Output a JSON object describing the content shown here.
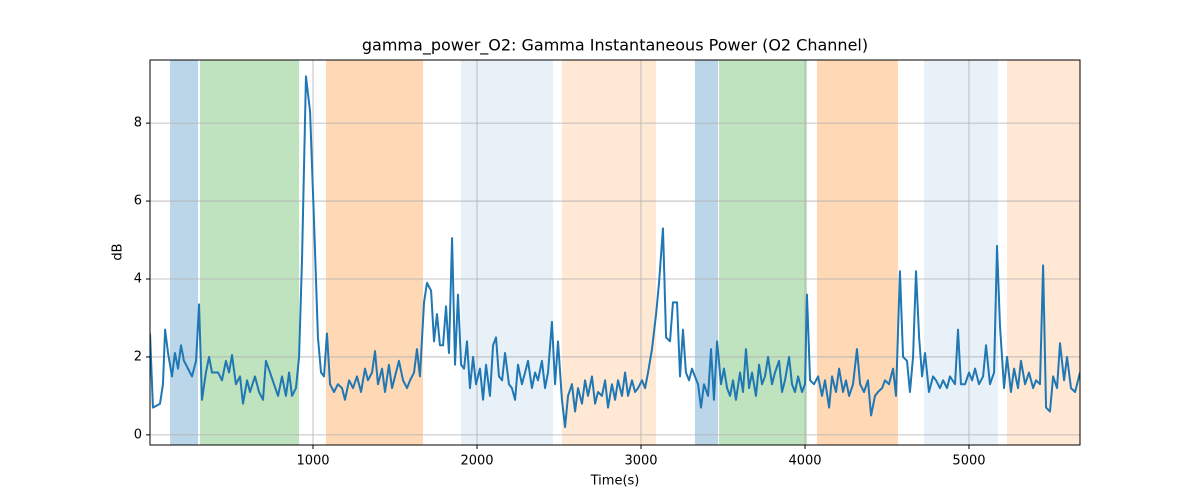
{
  "chart_data": {
    "type": "line",
    "title": "gamma_power_O2: Gamma Instantaneous Power (O2 Channel)",
    "xlabel": "Time(s)",
    "ylabel": "dB",
    "xlim": [
      6,
      5677
    ],
    "ylim": [
      -0.26,
      9.62
    ],
    "xticks": [
      1000,
      2000,
      3000,
      4000,
      5000
    ],
    "yticks": [
      0,
      2,
      4,
      6,
      8
    ],
    "grid": true,
    "spans": [
      {
        "start": 128,
        "end": 299,
        "color": "#1f77b4",
        "alpha": 0.3
      },
      {
        "start": 311,
        "end": 915,
        "color": "#2ca02c",
        "alpha": 0.3
      },
      {
        "start": 1079,
        "end": 1671,
        "color": "#ff7f0e",
        "alpha": 0.3
      },
      {
        "start": 1902,
        "end": 2463,
        "color": "#1f77b4",
        "alpha": 0.1
      },
      {
        "start": 2518,
        "end": 3091,
        "color": "#ff7f0e",
        "alpha": 0.18
      },
      {
        "start": 3329,
        "end": 3470,
        "color": "#1f77b4",
        "alpha": 0.3
      },
      {
        "start": 3476,
        "end": 4012,
        "color": "#2ca02c",
        "alpha": 0.3
      },
      {
        "start": 4073,
        "end": 4567,
        "color": "#ff7f0e",
        "alpha": 0.3
      },
      {
        "start": 4726,
        "end": 5177,
        "color": "#1f77b4",
        "alpha": 0.1
      },
      {
        "start": 5232,
        "end": 5677,
        "color": "#ff7f0e",
        "alpha": 0.18
      }
    ],
    "series": [
      {
        "color": "#1f77b4",
        "x": [
          6,
          24,
          67,
          85,
          98,
          116,
          140,
          158,
          177,
          195,
          213,
          238,
          262,
          287,
          305,
          323,
          347,
          366,
          384,
          421,
          445,
          469,
          488,
          506,
          530,
          555,
          573,
          598,
          616,
          646,
          671,
          695,
          713,
          738,
          762,
          787,
          811,
          835,
          854,
          872,
          896,
          915,
          933,
          957,
          982,
          1006,
          1030,
          1049,
          1067,
          1085,
          1104,
          1128,
          1152,
          1177,
          1195,
          1220,
          1244,
          1268,
          1293,
          1317,
          1335,
          1360,
          1378,
          1396,
          1421,
          1439,
          1463,
          1482,
          1506,
          1524,
          1549,
          1573,
          1592,
          1616,
          1634,
          1652,
          1677,
          1695,
          1720,
          1738,
          1756,
          1774,
          1793,
          1811,
          1829,
          1848,
          1866,
          1884,
          1903,
          1921,
          1939,
          1957,
          1976,
          1994,
          2018,
          2037,
          2055,
          2079,
          2098,
          2116,
          2134,
          2153,
          2171,
          2195,
          2213,
          2232,
          2250,
          2274,
          2293,
          2311,
          2335,
          2354,
          2372,
          2396,
          2415,
          2433,
          2457,
          2476,
          2494,
          2518,
          2537,
          2555,
          2579,
          2598,
          2616,
          2640,
          2659,
          2677,
          2701,
          2720,
          2738,
          2762,
          2781,
          2799,
          2823,
          2842,
          2860,
          2884,
          2903,
          2921,
          2945,
          2964,
          2982,
          3006,
          3025,
          3043,
          3067,
          3092,
          3110,
          3134,
          3153,
          3177,
          3195,
          3220,
          3238,
          3256,
          3274,
          3293,
          3311,
          3329,
          3348,
          3366,
          3384,
          3409,
          3427,
          3445,
          3464,
          3488,
          3506,
          3525,
          3543,
          3561,
          3579,
          3604,
          3622,
          3640,
          3659,
          3677,
          3701,
          3720,
          3738,
          3756,
          3775,
          3799,
          3817,
          3842,
          3860,
          3878,
          3903,
          3921,
          3939,
          3958,
          3982,
          4000,
          4012,
          4031,
          4055,
          4080,
          4104,
          4122,
          4147,
          4165,
          4189,
          4208,
          4232,
          4250,
          4269,
          4293,
          4317,
          4336,
          4360,
          4384,
          4403,
          4427,
          4445,
          4470,
          4488,
          4512,
          4537,
          4555,
          4579,
          4598,
          4622,
          4640,
          4659,
          4677,
          4696,
          4714,
          4732,
          4756,
          4781,
          4799,
          4823,
          4842,
          4866,
          4884,
          4915,
          4933,
          4951,
          4976,
          5000,
          5019,
          5037,
          5061,
          5086,
          5104,
          5128,
          5153,
          5171,
          5189,
          5214,
          5232,
          5256,
          5275,
          5299,
          5317,
          5342,
          5366,
          5391,
          5409,
          5433,
          5452,
          5470,
          5494,
          5513,
          5537,
          5555,
          5580,
          5598,
          5622,
          5647,
          5677
        ],
        "values": [
          2.6,
          0.7,
          0.8,
          1.3,
          2.7,
          2.1,
          1.5,
          2.1,
          1.7,
          2.3,
          1.9,
          1.7,
          1.5,
          1.9,
          3.35,
          0.9,
          1.6,
          2.0,
          1.6,
          1.6,
          1.4,
          1.9,
          1.6,
          2.05,
          1.3,
          1.5,
          0.8,
          1.4,
          1.1,
          1.5,
          1.1,
          0.9,
          1.9,
          1.6,
          1.3,
          1.0,
          1.5,
          1.0,
          1.6,
          1.0,
          1.2,
          2.0,
          4.5,
          9.2,
          8.3,
          5.5,
          2.5,
          1.6,
          1.5,
          2.6,
          1.3,
          1.1,
          1.3,
          1.2,
          0.9,
          1.4,
          1.2,
          1.5,
          1.1,
          1.7,
          1.4,
          1.6,
          2.15,
          1.3,
          1.7,
          1.1,
          1.8,
          1.2,
          1.6,
          1.9,
          1.4,
          1.2,
          1.4,
          1.6,
          2.2,
          1.5,
          3.4,
          3.9,
          3.7,
          2.4,
          3.1,
          2.3,
          2.3,
          3.3,
          2.1,
          5.05,
          1.8,
          3.6,
          1.8,
          1.7,
          2.4,
          1.2,
          2.0,
          1.3,
          1.7,
          0.9,
          1.8,
          1.0,
          2.3,
          2.5,
          1.5,
          1.4,
          2.1,
          1.3,
          1.2,
          0.9,
          1.8,
          1.3,
          1.6,
          1.9,
          1.2,
          1.6,
          1.4,
          1.9,
          1.2,
          1.6,
          2.9,
          1.3,
          2.4,
          0.9,
          0.2,
          1.0,
          1.3,
          0.6,
          1.2,
          0.8,
          1.4,
          1.0,
          1.5,
          0.8,
          1.1,
          1.0,
          1.4,
          0.7,
          1.3,
          0.9,
          1.4,
          1.0,
          1.6,
          1.0,
          1.4,
          1.1,
          1.2,
          1.4,
          1.2,
          1.6,
          2.2,
          3.1,
          3.9,
          5.3,
          2.5,
          2.4,
          3.4,
          3.4,
          1.5,
          2.7,
          1.6,
          1.4,
          1.7,
          1.5,
          1.3,
          0.7,
          1.3,
          1.0,
          2.2,
          0.9,
          2.4,
          1.3,
          1.7,
          1.2,
          1.0,
          1.4,
          0.9,
          1.6,
          1.1,
          2.2,
          1.2,
          1.6,
          1.0,
          1.8,
          1.3,
          1.5,
          2.0,
          1.3,
          1.6,
          1.9,
          1.1,
          1.4,
          2.0,
          1.3,
          1.1,
          1.5,
          1.1,
          1.3,
          3.6,
          1.4,
          1.3,
          1.5,
          1.0,
          1.4,
          0.7,
          1.5,
          1.1,
          1.7,
          1.1,
          1.4,
          1.0,
          1.3,
          2.2,
          1.3,
          1.1,
          1.4,
          0.5,
          1.0,
          1.1,
          1.2,
          1.4,
          1.3,
          1.7,
          1.0,
          4.2,
          2.0,
          1.9,
          1.1,
          2.0,
          4.2,
          2.5,
          1.5,
          2.1,
          1.1,
          1.5,
          1.4,
          1.2,
          1.4,
          1.2,
          1.5,
          1.3,
          2.7,
          1.3,
          1.3,
          1.6,
          1.4,
          1.7,
          1.3,
          1.5,
          2.3,
          1.3,
          1.6,
          4.85,
          2.8,
          1.2,
          2.0,
          1.1,
          1.7,
          1.2,
          1.9,
          1.3,
          1.6,
          1.2,
          1.4,
          1.3,
          4.35,
          0.7,
          0.6,
          1.5,
          1.2,
          2.35,
          1.4,
          2.0,
          1.2,
          1.1,
          1.6
        ]
      }
    ]
  }
}
